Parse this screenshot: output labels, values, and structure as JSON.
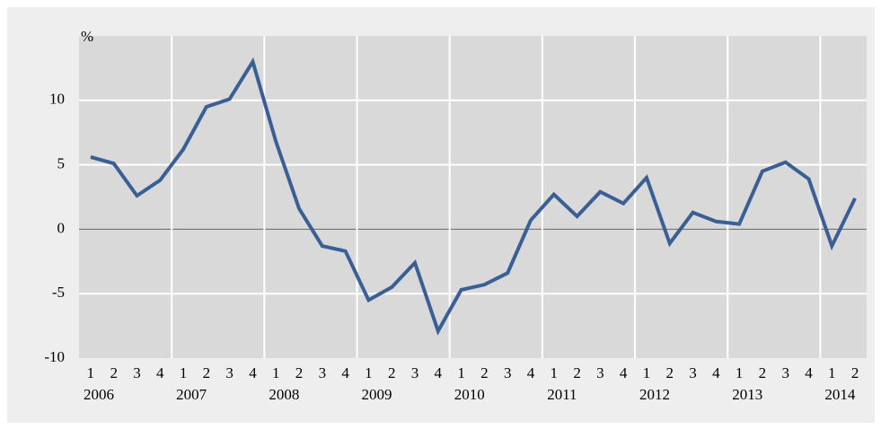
{
  "chart_data": {
    "type": "line",
    "y_label": "%",
    "categories": [
      "1",
      "2",
      "3",
      "4",
      "1",
      "2",
      "3",
      "4",
      "1",
      "2",
      "3",
      "4",
      "1",
      "2",
      "3",
      "4",
      "1",
      "2",
      "3",
      "4",
      "1",
      "2",
      "3",
      "4",
      "1",
      "2",
      "3",
      "4",
      "1",
      "2",
      "3",
      "4",
      "1",
      "2"
    ],
    "years": [
      "2006",
      "2007",
      "2008",
      "2009",
      "2010",
      "2011",
      "2012",
      "2013",
      "2014"
    ],
    "series": [
      {
        "color": "#3a5f95",
        "values": [
          5.6,
          5.1,
          2.6,
          3.8,
          6.2,
          9.5,
          10.1,
          13.0,
          6.8,
          1.6,
          -1.3,
          -1.7,
          -5.5,
          -4.5,
          -2.6,
          -7.9,
          -4.7,
          -4.3,
          -3.4,
          0.7,
          2.7,
          1.0,
          2.9,
          2.0,
          4.0,
          -1.1,
          1.3,
          0.6,
          0.4,
          4.5,
          5.2,
          3.9,
          -1.3,
          2.4
        ]
      }
    ],
    "ylim": [
      -10,
      15
    ],
    "yticks": [
      -10,
      -5,
      0,
      5,
      10
    ],
    "grid": true
  }
}
